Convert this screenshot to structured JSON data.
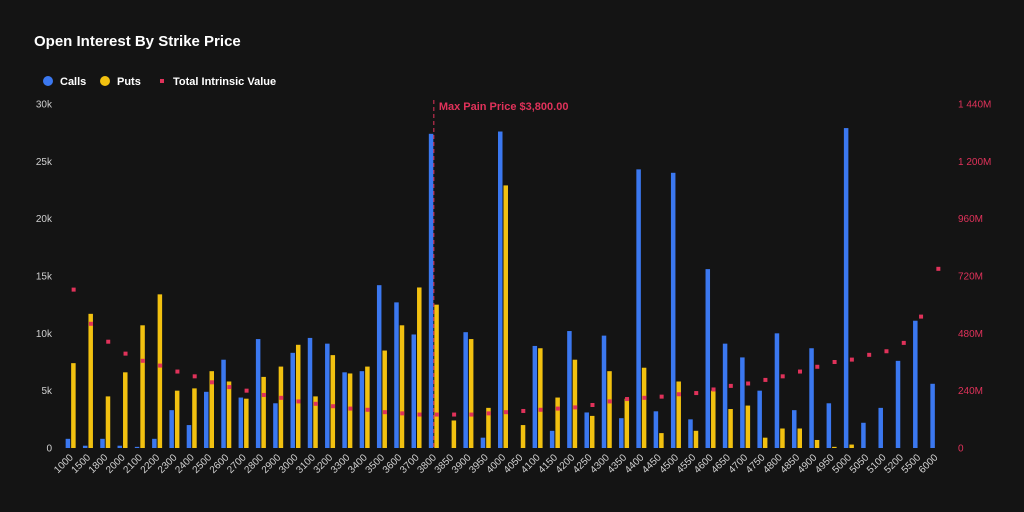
{
  "chart_data": {
    "type": "bar",
    "title": "Open Interest By Strike Price",
    "categories": [
      "1000",
      "1500",
      "1800",
      "2000",
      "2100",
      "2200",
      "2300",
      "2400",
      "2500",
      "2600",
      "2700",
      "2800",
      "2900",
      "3000",
      "3100",
      "3200",
      "3300",
      "3400",
      "3500",
      "3600",
      "3700",
      "3800",
      "3850",
      "3900",
      "3950",
      "4000",
      "4050",
      "4100",
      "4150",
      "4200",
      "4250",
      "4300",
      "4350",
      "4400",
      "4450",
      "4500",
      "4550",
      "4600",
      "4650",
      "4700",
      "4750",
      "4800",
      "4850",
      "4900",
      "4950",
      "5000",
      "5050",
      "5100",
      "5200",
      "5500",
      "6000"
    ],
    "series": [
      {
        "name": "Calls",
        "type": "bar",
        "axis": "left",
        "color": "#3b78f0",
        "values": [
          800,
          200,
          800,
          200,
          100,
          800,
          3300,
          2000,
          4900,
          7700,
          4400,
          9500,
          3900,
          8300,
          9600,
          9100,
          6600,
          6700,
          14200,
          12700,
          9900,
          27400,
          0,
          10100,
          900,
          27600,
          0,
          8900,
          1500,
          10200,
          3100,
          9800,
          2600,
          24300,
          3200,
          24000,
          2500,
          15600,
          9100,
          7900,
          5000,
          10000,
          3300,
          8700,
          3900,
          27900,
          2200,
          3500,
          7600,
          11100,
          5600
        ]
      },
      {
        "name": "Puts",
        "type": "bar",
        "axis": "left",
        "color": "#f2c110",
        "values": [
          7400,
          11700,
          4500,
          6600,
          10700,
          13400,
          5000,
          5200,
          6700,
          5800,
          4300,
          6200,
          7100,
          9000,
          4500,
          8100,
          6500,
          7100,
          8500,
          10700,
          14000,
          12500,
          2400,
          9500,
          3500,
          22900,
          2000,
          8700,
          4400,
          7700,
          2800,
          6700,
          4300,
          7000,
          1300,
          5800,
          1500,
          5000,
          3400,
          3700,
          900,
          1700,
          1700,
          700,
          100,
          300,
          0,
          0,
          0,
          0,
          0
        ]
      },
      {
        "name": "Total Intrinsic Value",
        "type": "scatter",
        "axis": "right",
        "color": "#e0325a",
        "values": [
          663,
          520,
          445,
          395,
          365,
          345,
          320,
          300,
          275,
          255,
          240,
          222,
          210,
          195,
          185,
          175,
          165,
          160,
          150,
          145,
          140,
          140,
          140,
          140,
          145,
          150,
          155,
          160,
          165,
          170,
          180,
          195,
          205,
          210,
          215,
          225,
          230,
          245,
          260,
          270,
          285,
          300,
          320,
          340,
          360,
          370,
          390,
          405,
          440,
          550,
          750
        ]
      }
    ],
    "y_left": {
      "min": 0,
      "max": 30000,
      "ticks": [
        0,
        5000,
        10000,
        15000,
        20000,
        25000,
        30000
      ],
      "tick_labels": [
        "0",
        "5k",
        "10k",
        "15k",
        "20k",
        "25k",
        "30k"
      ]
    },
    "y_right": {
      "min": 0,
      "max": 1440,
      "ticks": [
        0,
        240,
        480,
        720,
        960,
        1200,
        1440
      ],
      "tick_labels": [
        "0",
        "240M",
        "480M",
        "720M",
        "960M",
        "1 200M",
        "1 440M"
      ]
    },
    "annotation": {
      "category": "3800",
      "label": "Max Pain Price $3,800.00"
    },
    "legend": {
      "position": "top-left",
      "items": [
        {
          "label": "Calls",
          "color": "#3b78f0",
          "marker": "circle"
        },
        {
          "label": "Puts",
          "color": "#f2c110",
          "marker": "circle"
        },
        {
          "label": "Total Intrinsic Value",
          "color": "#e0325a",
          "marker": "small-square"
        }
      ]
    },
    "grid": false,
    "background": "#141414"
  }
}
